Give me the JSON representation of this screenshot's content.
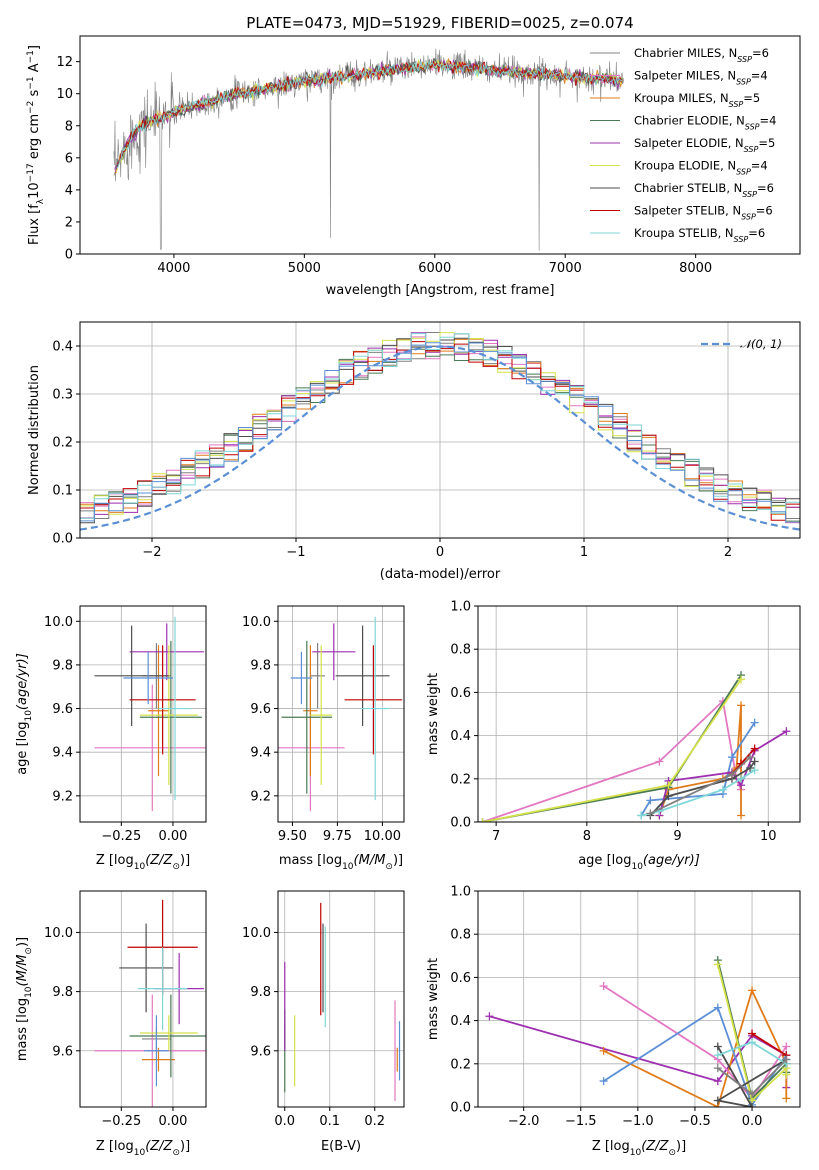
{
  "chart_data": [
    {
      "type": "line",
      "title": "PLATE=0473, MJD=51929, FIBERID=0025, z=0.074",
      "xlabel": "wavelength [Angstrom, rest frame]",
      "ylabel": "Flux [f",
      "ylabel_html": [
        "Flux [f",
        "λ",
        "10",
        "−17",
        " erg cm",
        "−2",
        " s",
        "−1",
        " A",
        "−1",
        "]"
      ],
      "xlim": [
        3280,
        8800
      ],
      "ylim": [
        0,
        13.6
      ],
      "xticks": [
        4000,
        5000,
        6000,
        7000,
        8000
      ],
      "yticks": [
        0,
        2,
        4,
        6,
        8,
        10,
        12
      ],
      "grid": false,
      "legend_position": "right",
      "series": [
        {
          "name": "Chabrier MILES, N",
          "sub": "SSP",
          "suffix": "=6",
          "color": "#808080"
        },
        {
          "name": "Salpeter MILES, N",
          "sub": "SSP",
          "suffix": "=4",
          "color": "#e377c2"
        },
        {
          "name": "Kroupa MILES, N",
          "sub": "SSP",
          "suffix": "=5",
          "color": "#e07b1a"
        },
        {
          "name": "Chabrier ELODIE, N",
          "sub": "SSP",
          "suffix": "=4",
          "color": "#4a7a55"
        },
        {
          "name": "Salpeter ELODIE, N",
          "sub": "SSP",
          "suffix": "=5",
          "color": "#9e2fb0"
        },
        {
          "name": "Kroupa ELODIE, N",
          "sub": "SSP",
          "suffix": "=4",
          "color": "#d4e14a"
        },
        {
          "name": "Chabrier STELIB, N",
          "sub": "SSP",
          "suffix": "=6",
          "color": "#4d4d4d"
        },
        {
          "name": "Salpeter STELIB, N",
          "sub": "SSP",
          "suffix": "=6",
          "color": "#c00000"
        },
        {
          "name": "Kroupa STELIB, N",
          "sub": "SSP",
          "suffix": "=6",
          "color": "#7fd6d6"
        }
      ],
      "continuum": {
        "x": [
          3550,
          3650,
          3750,
          3850,
          3950,
          4050,
          4150,
          4300,
          4500,
          4700,
          4900,
          5100,
          5300,
          5500,
          5700,
          5900,
          6100,
          6300,
          6500,
          6700,
          6900,
          7100,
          7300,
          7500
        ],
        "y": [
          5.2,
          7.0,
          8.0,
          8.4,
          8.6,
          9.0,
          9.2,
          9.6,
          10.0,
          10.3,
          10.6,
          10.9,
          11.1,
          11.3,
          11.5,
          11.7,
          11.8,
          11.6,
          11.4,
          11.3,
          11.2,
          11.0,
          10.9,
          10.8
        ]
      }
    },
    {
      "type": "histogram",
      "xlabel": "(data-model)/error",
      "ylabel": "Normed distribution",
      "xlim": [
        -2.5,
        2.5
      ],
      "ylim": [
        0,
        0.45
      ],
      "xticks": [
        -2,
        -1,
        0,
        1,
        2
      ],
      "yticks": [
        0.0,
        0.1,
        0.2,
        0.3,
        0.4
      ],
      "grid": true,
      "legend": "𝒩(0, 1)",
      "legend_position": "top-right",
      "bin_width": 0.1,
      "reference": {
        "name": "𝒩(0, 1)",
        "mu": 0,
        "sigma": 1,
        "color": "#5b8fd6"
      }
    },
    {
      "type": "scatter",
      "xlabel": "Z [log",
      "xlabel_html": [
        "Z [log",
        "10",
        "(Z/Z",
        "⊙",
        ")]"
      ],
      "ylabel_html": [
        "age  [log",
        "10",
        "(age/yr)]"
      ],
      "xlim": [
        -0.45,
        0.16
      ],
      "ylim": [
        9.08,
        10.07
      ],
      "xticks": [
        -0.25,
        0.0
      ],
      "yticks": [
        9.2,
        9.4,
        9.6,
        9.8,
        10.0
      ],
      "grid": true,
      "points": [
        {
          "x": -0.08,
          "y": 9.75,
          "ex": 0.07,
          "ey": 0.15,
          "color": "#808080"
        },
        {
          "x": -0.1,
          "y": 9.42,
          "ex": 0.28,
          "ey": 0.29,
          "color": "#e377c2"
        },
        {
          "x": -0.07,
          "y": 9.59,
          "ex": 0.05,
          "ey": 0.3,
          "color": "#e07b1a"
        },
        {
          "x": -0.01,
          "y": 9.56,
          "ex": 0.15,
          "ey": 0.35,
          "color": "#4a7a55"
        },
        {
          "x": -0.03,
          "y": 9.86,
          "ex": 0.18,
          "ey": 0.13,
          "color": "#9e2fb0"
        },
        {
          "x": -0.02,
          "y": 9.57,
          "ex": 0.14,
          "ey": 0.32,
          "color": "#d4e14a"
        },
        {
          "x": -0.2,
          "y": 9.75,
          "ex": 0.18,
          "ey": 0.23,
          "color": "#4d4d4d"
        },
        {
          "x": -0.05,
          "y": 9.64,
          "ex": 0.16,
          "ey": 0.25,
          "color": "#c00000"
        },
        {
          "x": 0.01,
          "y": 9.6,
          "ex": 0.08,
          "ey": 0.42,
          "color": "#7fd6d6"
        },
        {
          "x": -0.12,
          "y": 9.74,
          "ex": 0.12,
          "ey": 0.12,
          "color": "#5b8fd6"
        }
      ]
    },
    {
      "type": "scatter",
      "xlabel_html": [
        "mass [log",
        "10",
        "(M/M",
        "⊙",
        ")]"
      ],
      "xlim": [
        9.42,
        10.12
      ],
      "ylim": [
        9.08,
        10.07
      ],
      "xticks": [
        9.5,
        9.75,
        10.0
      ],
      "yticks": [
        9.2,
        9.4,
        9.6,
        9.8,
        10.0
      ],
      "grid": true,
      "points": [
        {
          "x": 9.64,
          "y": 9.75,
          "ex": 0.04,
          "ey": 0.15,
          "color": "#808080"
        },
        {
          "x": 9.6,
          "y": 9.42,
          "ex": 0.19,
          "ey": 0.29,
          "color": "#e377c2"
        },
        {
          "x": 9.6,
          "y": 9.59,
          "ex": 0.04,
          "ey": 0.3,
          "color": "#e07b1a"
        },
        {
          "x": 9.58,
          "y": 9.56,
          "ex": 0.14,
          "ey": 0.35,
          "color": "#4a7a55"
        },
        {
          "x": 9.73,
          "y": 9.86,
          "ex": 0.12,
          "ey": 0.13,
          "color": "#9e2fb0"
        },
        {
          "x": 9.66,
          "y": 9.57,
          "ex": 0.06,
          "ey": 0.32,
          "color": "#d4e14a"
        },
        {
          "x": 9.89,
          "y": 9.75,
          "ex": 0.15,
          "ey": 0.23,
          "color": "#4d4d4d"
        },
        {
          "x": 9.95,
          "y": 9.64,
          "ex": 0.16,
          "ey": 0.25,
          "color": "#c00000"
        },
        {
          "x": 9.96,
          "y": 9.6,
          "ex": 0.08,
          "ey": 0.42,
          "color": "#7fd6d6"
        },
        {
          "x": 9.55,
          "y": 9.74,
          "ex": 0.06,
          "ey": 0.12,
          "color": "#5b8fd6"
        }
      ]
    },
    {
      "type": "line",
      "xlabel_html": [
        "age  [log",
        "10",
        "(age/yr)]"
      ],
      "ylabel": "mass weight",
      "xlim": [
        6.8,
        10.35
      ],
      "ylim": [
        0,
        1.0
      ],
      "xticks": [
        7,
        8,
        9,
        10
      ],
      "yticks": [
        0.0,
        0.2,
        0.4,
        0.6,
        0.8,
        1.0
      ],
      "grid": true,
      "series": [
        {
          "color": "#e377c2",
          "x": [
            6.85,
            8.8,
            9.5,
            9.65,
            9.7
          ],
          "y": [
            0.0,
            0.28,
            0.56,
            0.2,
            0.15
          ]
        },
        {
          "color": "#e07b1a",
          "x": [
            8.8,
            8.9,
            9.5,
            9.65,
            9.7,
            9.7
          ],
          "y": [
            0.03,
            0.15,
            0.2,
            0.25,
            0.54,
            0.03
          ]
        },
        {
          "color": "#5b8fd6",
          "x": [
            8.6,
            8.7,
            9.5,
            9.6,
            9.85
          ],
          "y": [
            0.03,
            0.1,
            0.13,
            0.3,
            0.46
          ]
        },
        {
          "color": "#9e2fb0",
          "x": [
            8.8,
            8.9,
            9.6,
            9.7,
            9.85,
            10.2
          ],
          "y": [
            0.03,
            0.19,
            0.23,
            0.17,
            0.33,
            0.42
          ]
        },
        {
          "color": "#4a7a55",
          "x": [
            6.85,
            8.9,
            9.7
          ],
          "y": [
            0.0,
            0.16,
            0.68
          ]
        },
        {
          "color": "#d4e14a",
          "x": [
            6.85,
            8.9,
            9.7
          ],
          "y": [
            0.0,
            0.17,
            0.66
          ]
        },
        {
          "color": "#4d4d4d",
          "x": [
            8.7,
            8.9,
            9.6,
            9.8,
            9.85
          ],
          "y": [
            0.03,
            0.12,
            0.2,
            0.25,
            0.28
          ]
        },
        {
          "color": "#c00000",
          "x": [
            9.6,
            9.7,
            9.85
          ],
          "y": [
            0.22,
            0.27,
            0.34
          ]
        },
        {
          "color": "#7fd6d6",
          "x": [
            8.6,
            8.8,
            9.5,
            9.7,
            9.85
          ],
          "y": [
            0.03,
            0.05,
            0.15,
            0.2,
            0.24
          ]
        },
        {
          "color": "#808080",
          "x": [
            8.7,
            9.6,
            9.8
          ],
          "y": [
            0.04,
            0.22,
            0.3
          ]
        }
      ]
    },
    {
      "type": "scatter",
      "xlabel_html": [
        "Z [log",
        "10",
        "(Z/Z",
        "⊙",
        ")]"
      ],
      "ylabel_html": [
        "mass [log",
        "10",
        "(M/M",
        "⊙",
        ")]"
      ],
      "xlim": [
        -0.45,
        0.16
      ],
      "ylim": [
        9.41,
        10.14
      ],
      "xticks": [
        -0.25,
        0.0
      ],
      "yticks": [
        9.6,
        9.8,
        10.0
      ],
      "grid": true,
      "points": [
        {
          "x": -0.08,
          "y": 9.64,
          "ex": 0.07,
          "ey": 0.04,
          "color": "#808080"
        },
        {
          "x": -0.1,
          "y": 9.6,
          "ex": 0.28,
          "ey": 0.19,
          "color": "#e377c2"
        },
        {
          "x": -0.07,
          "y": 9.57,
          "ex": 0.08,
          "ey": 0.04,
          "color": "#e07b1a"
        },
        {
          "x": -0.01,
          "y": 9.65,
          "ex": 0.2,
          "ey": 0.14,
          "color": "#4a7a55"
        },
        {
          "x": 0.03,
          "y": 9.81,
          "ex": 0.12,
          "ey": 0.12,
          "color": "#9e2fb0"
        },
        {
          "x": -0.02,
          "y": 9.66,
          "ex": 0.14,
          "ey": 0.06,
          "color": "#d4e14a"
        },
        {
          "x": -0.13,
          "y": 9.88,
          "ex": 0.13,
          "ey": 0.15,
          "color": "#4d4d4d"
        },
        {
          "x": -0.05,
          "y": 9.95,
          "ex": 0.17,
          "ey": 0.16,
          "color": "#c00000"
        },
        {
          "x": -0.05,
          "y": 9.81,
          "ex": 0.12,
          "ey": 0.14,
          "color": "#7fd6d6"
        },
        {
          "x": -0.08,
          "y": 9.6,
          "ex": 0.06,
          "ey": 0.12,
          "color": "#5b8fd6"
        }
      ]
    },
    {
      "type": "scatter",
      "xlabel": "E(B-V)",
      "xlim": [
        -0.015,
        0.265
      ],
      "ylim": [
        9.41,
        10.14
      ],
      "xticks": [
        0.0,
        0.1,
        0.2
      ],
      "yticks": [
        9.6,
        9.8,
        10.0
      ],
      "grid": true,
      "points": [
        {
          "x": 0.0,
          "y": 9.64,
          "ex": 0,
          "ey": 0.04,
          "color": "#808080"
        },
        {
          "x": 0.245,
          "y": 9.6,
          "ex": 0,
          "ey": 0.17,
          "color": "#e377c2"
        },
        {
          "x": 0.25,
          "y": 9.57,
          "ex": 0,
          "ey": 0.04,
          "color": "#e07b1a"
        },
        {
          "x": 0.0,
          "y": 9.6,
          "ex": 0,
          "ey": 0.14,
          "color": "#4a7a55"
        },
        {
          "x": 0.0,
          "y": 9.75,
          "ex": 0,
          "ey": 0.15,
          "color": "#9e2fb0"
        },
        {
          "x": 0.022,
          "y": 9.6,
          "ex": 0,
          "ey": 0.12,
          "color": "#d4e14a"
        },
        {
          "x": 0.085,
          "y": 9.88,
          "ex": 0,
          "ey": 0.15,
          "color": "#4d4d4d"
        },
        {
          "x": 0.08,
          "y": 9.91,
          "ex": 0,
          "ey": 0.19,
          "color": "#c00000"
        },
        {
          "x": 0.09,
          "y": 9.85,
          "ex": 0,
          "ey": 0.17,
          "color": "#7fd6d6"
        },
        {
          "x": 0.255,
          "y": 9.6,
          "ex": 0,
          "ey": 0.1,
          "color": "#5b8fd6"
        }
      ]
    },
    {
      "type": "line",
      "xlabel_html": [
        "Z [log",
        "10",
        "(Z/Z",
        "⊙",
        ")]"
      ],
      "ylabel": "mass weight",
      "xlim": [
        -2.4,
        0.42
      ],
      "ylim": [
        0,
        1.0
      ],
      "xticks": [
        -2.0,
        -1.5,
        -1.0,
        -0.5,
        0.0
      ],
      "yticks": [
        0.0,
        0.2,
        0.4,
        0.6,
        0.8,
        1.0
      ],
      "grid": true,
      "series": [
        {
          "color": "#9e2fb0",
          "x": [
            -2.3,
            -0.3,
            0.0,
            0.3,
            0.3
          ],
          "y": [
            0.42,
            0.12,
            0.33,
            0.24,
            0.09
          ]
        },
        {
          "color": "#e07b1a",
          "x": [
            -1.3,
            -0.3,
            0.0,
            0.3,
            0.3
          ],
          "y": [
            0.26,
            0.0,
            0.54,
            0.2,
            0.04
          ]
        },
        {
          "color": "#e377c2",
          "x": [
            -1.3,
            -0.3,
            0.0,
            0.3
          ],
          "y": [
            0.56,
            0.22,
            0.04,
            0.28
          ]
        },
        {
          "color": "#5b8fd6",
          "x": [
            -1.3,
            -0.3,
            0.0,
            0.3
          ],
          "y": [
            0.12,
            0.46,
            0.01,
            0.24
          ]
        },
        {
          "color": "#4a7a55",
          "x": [
            -0.3,
            0.0,
            0.3,
            0.3
          ],
          "y": [
            0.68,
            0.04,
            0.2,
            0.16
          ]
        },
        {
          "color": "#d4e14a",
          "x": [
            -0.3,
            0.0,
            0.3,
            0.3
          ],
          "y": [
            0.66,
            0.03,
            0.18,
            0.15
          ]
        },
        {
          "color": "#4d4d4d",
          "x": [
            -0.3,
            0.0,
            -0.3,
            0.3
          ],
          "y": [
            0.28,
            0.0,
            0.03,
            0.22
          ]
        },
        {
          "color": "#7fd6d6",
          "x": [
            -0.3,
            0.0,
            0.3
          ],
          "y": [
            0.24,
            0.3,
            0.2
          ]
        },
        {
          "color": "#c00000",
          "x": [
            0.0,
            0.3
          ],
          "y": [
            0.34,
            0.24
          ]
        },
        {
          "color": "#808080",
          "x": [
            -0.3,
            0.0,
            0.3
          ],
          "y": [
            0.18,
            0.06,
            0.22
          ]
        }
      ]
    }
  ]
}
